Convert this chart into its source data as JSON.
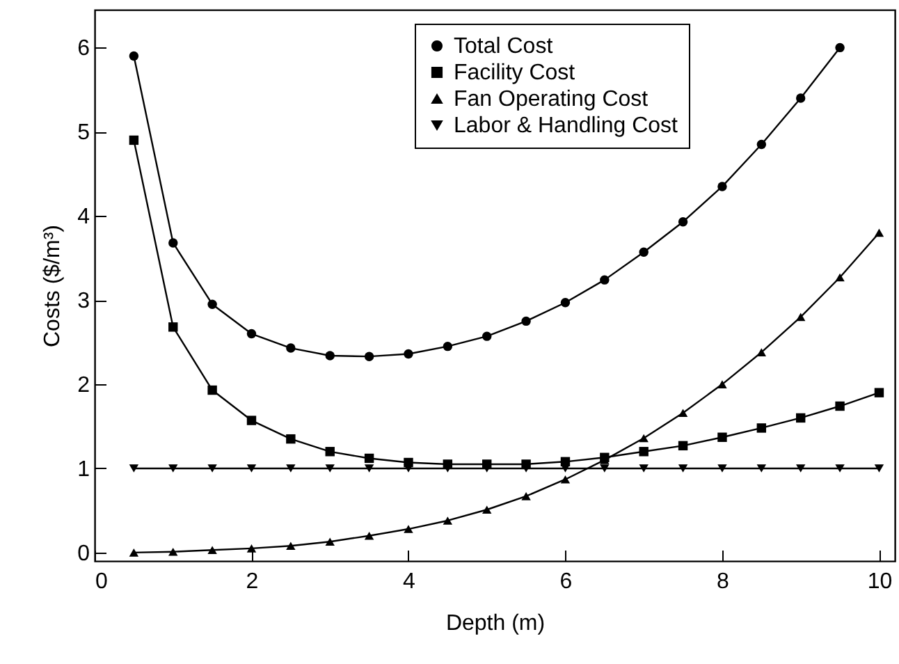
{
  "chart_data": {
    "type": "line",
    "xlabel": "Depth (m)",
    "ylabel": "Costs ($/m³)",
    "x": [
      0.5,
      1,
      1.5,
      2,
      2.5,
      3,
      3.5,
      4,
      4.5,
      5,
      5.5,
      6,
      6.5,
      7,
      7.5,
      8,
      8.5,
      9,
      9.5,
      10
    ],
    "series": [
      {
        "name": "Total Cost",
        "color": "#000000",
        "marker": "circle",
        "values": [
          5.9,
          3.68,
          2.95,
          2.6,
          2.43,
          2.34,
          2.33,
          2.36,
          2.45,
          2.57,
          2.75,
          2.97,
          3.24,
          3.57,
          3.93,
          4.35,
          4.85,
          5.4,
          6.0,
          null
        ]
      },
      {
        "name": "Facility Cost",
        "color": "#000000",
        "marker": "square",
        "values": [
          4.9,
          2.68,
          1.93,
          1.57,
          1.35,
          1.2,
          1.12,
          1.07,
          1.05,
          1.05,
          1.05,
          1.08,
          1.13,
          1.2,
          1.27,
          1.37,
          1.48,
          1.6,
          1.74,
          1.9
        ]
      },
      {
        "name": "Fan Operating Cost",
        "color": "#000000",
        "marker": "triangle",
        "values": [
          0,
          0.01,
          0.03,
          0.05,
          0.08,
          0.13,
          0.2,
          0.28,
          0.38,
          0.51,
          0.67,
          0.87,
          1.1,
          1.36,
          1.66,
          2.0,
          2.38,
          2.8,
          3.27,
          3.8
        ]
      },
      {
        "name": "Labor & Handling Cost",
        "color": "#000000",
        "marker": "triangle-down",
        "values": [
          1,
          1,
          1,
          1,
          1,
          1,
          1,
          1,
          1,
          1,
          1,
          1,
          1,
          1,
          1,
          1,
          1,
          1,
          1,
          1
        ]
      }
    ],
    "xlim": [
      0,
      10.2
    ],
    "xticks": [
      0,
      2,
      4,
      6,
      8,
      10
    ],
    "ylim": [
      -0.1,
      6.45
    ],
    "yticks": [
      0,
      1,
      2,
      3,
      4,
      5,
      6
    ],
    "grid": false,
    "legend": "top",
    "line_style": "solid"
  }
}
